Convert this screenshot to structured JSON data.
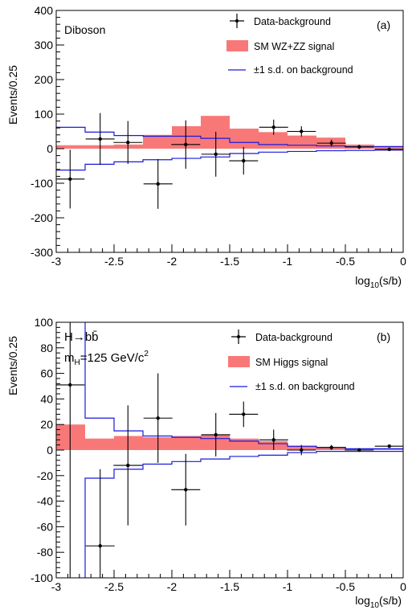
{
  "colors": {
    "signal": "#f87878",
    "band": "#1a1adc",
    "data": "#000000",
    "axis": "#000000"
  },
  "chart_data": [
    {
      "type": "bar",
      "panel_label": "(a)",
      "title": "Diboson",
      "title_line2": "",
      "xlabel_main": "log",
      "xlabel_sub": "10",
      "xlabel_rest": "(s/b)",
      "ylabel": "Events/0.25",
      "xlim": [
        -3,
        0
      ],
      "ylim": [
        -300,
        400
      ],
      "xticks": [
        -3,
        -2.5,
        -2,
        -1.5,
        -1,
        -0.5,
        0
      ],
      "xticklabels": [
        "-3",
        "-2.5",
        "-2",
        "-1.5",
        "-1",
        "-0.5",
        "0"
      ],
      "yticks": [
        -300,
        -200,
        -100,
        0,
        100,
        200,
        300,
        400
      ],
      "yticklabels": [
        "-300",
        "-200",
        "-100",
        "0",
        "100",
        "200",
        "300",
        "400"
      ],
      "legend": [
        "Data-background",
        "SM WZ+ZZ signal",
        "±1 s.d. on background"
      ],
      "bin_edges": [
        -3,
        -2.75,
        -2.5,
        -2.25,
        -2,
        -1.75,
        -1.5,
        -1.25,
        -1,
        -0.75,
        -0.5,
        -0.25,
        0
      ],
      "signal": [
        10,
        10,
        12,
        40,
        65,
        95,
        58,
        48,
        38,
        32,
        12,
        8
      ],
      "band_upper": [
        62,
        48,
        38,
        36,
        36,
        30,
        18,
        12,
        10,
        8,
        6,
        6
      ],
      "band_lower": [
        -62,
        -45,
        -38,
        -32,
        -28,
        -24,
        -14,
        -10,
        -8,
        -6,
        -5,
        -4
      ],
      "data_points": [
        {
          "x": -2.88,
          "y": -88,
          "yerr": 85
        },
        {
          "x": -2.62,
          "y": 28,
          "yerr": 75
        },
        {
          "x": -2.38,
          "y": 18,
          "yerr": 62
        },
        {
          "x": -2.12,
          "y": -102,
          "yerr": 72
        },
        {
          "x": -1.88,
          "y": 12,
          "yerr": 70
        },
        {
          "x": -1.62,
          "y": -16,
          "yerr": 65
        },
        {
          "x": -1.38,
          "y": -35,
          "yerr": 40
        },
        {
          "x": -1.12,
          "y": 62,
          "yerr": 22
        },
        {
          "x": -0.88,
          "y": 50,
          "yerr": 15
        },
        {
          "x": -0.62,
          "y": 16,
          "yerr": 10
        },
        {
          "x": -0.38,
          "y": 5,
          "yerr": 6
        },
        {
          "x": -0.12,
          "y": -2,
          "yerr": 3
        }
      ]
    },
    {
      "type": "bar",
      "panel_label": "(b)",
      "title": "H→bb̄",
      "title_line2": "m",
      "title_line2_sub": "H",
      "title_line2_rest": "=125 GeV/c",
      "title_line2_sup": "2",
      "xlabel_main": "log",
      "xlabel_sub": "10",
      "xlabel_rest": "(s/b)",
      "ylabel": "Events/0.25",
      "xlim": [
        -3,
        0
      ],
      "ylim": [
        -100,
        100
      ],
      "xticks": [
        -3,
        -2.5,
        -2,
        -1.5,
        -1,
        -0.5,
        0
      ],
      "xticklabels": [
        "-3",
        "-2.5",
        "-2",
        "-1.5",
        "-1",
        "-0.5",
        "0"
      ],
      "yticks": [
        -100,
        -80,
        -60,
        -40,
        -20,
        0,
        20,
        40,
        60,
        80,
        100
      ],
      "yticklabels": [
        "-100",
        "-80",
        "-60",
        "-40",
        "-20",
        "0",
        "20",
        "40",
        "60",
        "80",
        "100"
      ],
      "legend": [
        "Data-background",
        "SM Higgs signal",
        "±1 s.d. on background"
      ],
      "bin_edges": [
        -3,
        -2.75,
        -2.5,
        -2.25,
        -2,
        -1.75,
        -1.5,
        -1.25,
        -1,
        -0.75,
        -0.5,
        -0.25,
        0
      ],
      "signal": [
        20,
        9,
        11,
        10,
        11,
        12,
        9,
        7,
        3,
        2,
        1,
        1
      ],
      "band_upper": [
        110,
        25,
        15,
        11,
        10,
        9,
        7,
        5,
        3,
        2,
        1,
        1
      ],
      "band_lower": [
        -110,
        -22,
        -15,
        -11,
        -9,
        -7,
        -5,
        -4,
        -2,
        -1,
        -1,
        -1
      ],
      "data_points": [
        {
          "x": -2.88,
          "y": 51,
          "yerr": 175
        },
        {
          "x": -2.62,
          "y": -75,
          "yerr": 60
        },
        {
          "x": -2.38,
          "y": -12,
          "yerr": 47
        },
        {
          "x": -2.12,
          "y": 25,
          "yerr": 35
        },
        {
          "x": -1.88,
          "y": -31,
          "yerr": 28
        },
        {
          "x": -1.62,
          "y": 12,
          "yerr": 17
        },
        {
          "x": -1.38,
          "y": 28,
          "yerr": 10
        },
        {
          "x": -1.12,
          "y": 8,
          "yerr": 8
        },
        {
          "x": -0.88,
          "y": 0,
          "yerr": 4
        },
        {
          "x": -0.62,
          "y": 2,
          "yerr": 2
        },
        {
          "x": -0.38,
          "y": 0,
          "yerr": 1
        },
        {
          "x": -0.12,
          "y": 3,
          "yerr": 1
        }
      ]
    }
  ]
}
